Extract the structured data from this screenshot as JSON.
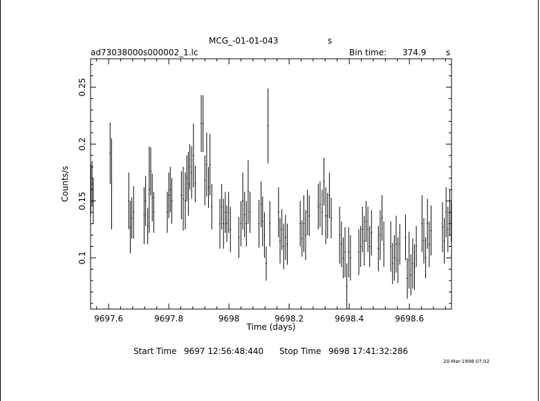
{
  "header": {
    "object_name": "MCG_-01-01-043",
    "instrument_suffix": "s",
    "file_name": "ad73038000s000002_1.lc",
    "bin_time_label": "Bin time:",
    "bin_time_value": "374.9",
    "bin_time_unit": "s"
  },
  "footer": {
    "start_label": "Start Time",
    "start_value": "9697  12:56:48:440",
    "stop_label": "Stop Time",
    "stop_value": "9698  17:41:32:286",
    "date_stamp": "20-Mar-1998 07:02"
  },
  "chart_data": {
    "type": "scatter",
    "xlabel": "Time (days)",
    "ylabel": "Counts/s",
    "xlim": [
      9697.54,
      9698.74
    ],
    "ylim": [
      0.055,
      0.275
    ],
    "xticks": [
      9697.6,
      9697.8,
      9698,
      9698.2,
      9698.4,
      9698.6
    ],
    "xtick_labels": [
      "9697.6",
      "9697.8",
      "9698",
      "9698.2",
      "9698.4",
      "9698.6"
    ],
    "yticks": [
      0.1,
      0.15,
      0.2,
      0.25
    ],
    "ytick_labels": [
      "0.1",
      "0.15",
      "0.2",
      "0.25"
    ],
    "grid": false,
    "points": [
      {
        "x": 9697.541,
        "y": 0.16,
        "err": 0.022
      },
      {
        "x": 9697.545,
        "y": 0.165,
        "err": 0.02
      },
      {
        "x": 9697.549,
        "y": 0.15,
        "err": 0.02
      },
      {
        "x": 9697.605,
        "y": 0.192,
        "err": 0.027
      },
      {
        "x": 9697.61,
        "y": 0.165,
        "err": 0.04
      },
      {
        "x": 9697.667,
        "y": 0.15,
        "err": 0.025
      },
      {
        "x": 9697.672,
        "y": 0.127,
        "err": 0.023
      },
      {
        "x": 9697.677,
        "y": 0.135,
        "err": 0.018
      },
      {
        "x": 9697.683,
        "y": 0.14,
        "err": 0.023
      },
      {
        "x": 9697.718,
        "y": 0.137,
        "err": 0.025
      },
      {
        "x": 9697.723,
        "y": 0.15,
        "err": 0.022
      },
      {
        "x": 9697.73,
        "y": 0.128,
        "err": 0.016
      },
      {
        "x": 9697.735,
        "y": 0.16,
        "err": 0.038
      },
      {
        "x": 9697.74,
        "y": 0.176,
        "err": 0.021
      },
      {
        "x": 9697.745,
        "y": 0.153,
        "err": 0.021
      },
      {
        "x": 9697.75,
        "y": 0.14,
        "err": 0.018
      },
      {
        "x": 9697.795,
        "y": 0.14,
        "err": 0.018
      },
      {
        "x": 9697.8,
        "y": 0.155,
        "err": 0.02
      },
      {
        "x": 9697.805,
        "y": 0.16,
        "err": 0.02
      },
      {
        "x": 9697.81,
        "y": 0.15,
        "err": 0.02
      },
      {
        "x": 9697.842,
        "y": 0.155,
        "err": 0.021
      },
      {
        "x": 9697.848,
        "y": 0.152,
        "err": 0.028
      },
      {
        "x": 9697.855,
        "y": 0.15,
        "err": 0.025
      },
      {
        "x": 9697.86,
        "y": 0.17,
        "err": 0.02
      },
      {
        "x": 9697.865,
        "y": 0.165,
        "err": 0.028
      },
      {
        "x": 9697.87,
        "y": 0.18,
        "err": 0.02
      },
      {
        "x": 9697.876,
        "y": 0.175,
        "err": 0.023
      },
      {
        "x": 9697.882,
        "y": 0.19,
        "err": 0.028
      },
      {
        "x": 9697.888,
        "y": 0.165,
        "err": 0.016
      },
      {
        "x": 9697.908,
        "y": 0.218,
        "err": 0.025
      },
      {
        "x": 9697.914,
        "y": 0.218,
        "err": 0.025
      },
      {
        "x": 9697.92,
        "y": 0.168,
        "err": 0.022
      },
      {
        "x": 9697.926,
        "y": 0.182,
        "err": 0.028
      },
      {
        "x": 9697.932,
        "y": 0.162,
        "err": 0.018
      },
      {
        "x": 9697.937,
        "y": 0.182,
        "err": 0.027
      },
      {
        "x": 9697.943,
        "y": 0.145,
        "err": 0.02
      },
      {
        "x": 9697.97,
        "y": 0.13,
        "err": 0.022
      },
      {
        "x": 9697.976,
        "y": 0.145,
        "err": 0.02
      },
      {
        "x": 9697.982,
        "y": 0.13,
        "err": 0.022
      },
      {
        "x": 9697.988,
        "y": 0.14,
        "err": 0.018
      },
      {
        "x": 9697.993,
        "y": 0.13,
        "err": 0.016
      },
      {
        "x": 9697.999,
        "y": 0.14,
        "err": 0.018
      },
      {
        "x": 9698.005,
        "y": 0.125,
        "err": 0.02
      },
      {
        "x": 9698.033,
        "y": 0.118,
        "err": 0.018
      },
      {
        "x": 9698.04,
        "y": 0.13,
        "err": 0.02
      },
      {
        "x": 9698.046,
        "y": 0.15,
        "err": 0.025
      },
      {
        "x": 9698.052,
        "y": 0.138,
        "err": 0.02
      },
      {
        "x": 9698.058,
        "y": 0.13,
        "err": 0.02
      },
      {
        "x": 9698.064,
        "y": 0.158,
        "err": 0.028
      },
      {
        "x": 9698.07,
        "y": 0.14,
        "err": 0.018
      },
      {
        "x": 9698.1,
        "y": 0.13,
        "err": 0.021
      },
      {
        "x": 9698.107,
        "y": 0.147,
        "err": 0.02
      },
      {
        "x": 9698.112,
        "y": 0.132,
        "err": 0.022
      },
      {
        "x": 9698.118,
        "y": 0.12,
        "err": 0.02
      },
      {
        "x": 9698.124,
        "y": 0.095,
        "err": 0.015
      },
      {
        "x": 9698.13,
        "y": 0.216,
        "err": 0.033
      },
      {
        "x": 9698.136,
        "y": 0.13,
        "err": 0.02
      },
      {
        "x": 9698.165,
        "y": 0.14,
        "err": 0.022
      },
      {
        "x": 9698.17,
        "y": 0.115,
        "err": 0.02
      },
      {
        "x": 9698.176,
        "y": 0.125,
        "err": 0.018
      },
      {
        "x": 9698.182,
        "y": 0.11,
        "err": 0.02
      },
      {
        "x": 9698.188,
        "y": 0.118,
        "err": 0.02
      },
      {
        "x": 9698.194,
        "y": 0.112,
        "err": 0.018
      },
      {
        "x": 9698.237,
        "y": 0.13,
        "err": 0.02
      },
      {
        "x": 9698.243,
        "y": 0.117,
        "err": 0.016
      },
      {
        "x": 9698.249,
        "y": 0.13,
        "err": 0.025
      },
      {
        "x": 9698.255,
        "y": 0.12,
        "err": 0.022
      },
      {
        "x": 9698.261,
        "y": 0.14,
        "err": 0.02
      },
      {
        "x": 9698.267,
        "y": 0.137,
        "err": 0.018
      },
      {
        "x": 9698.297,
        "y": 0.145,
        "err": 0.02
      },
      {
        "x": 9698.303,
        "y": 0.147,
        "err": 0.02
      },
      {
        "x": 9698.31,
        "y": 0.14,
        "err": 0.02
      },
      {
        "x": 9698.316,
        "y": 0.167,
        "err": 0.021
      },
      {
        "x": 9698.322,
        "y": 0.137,
        "err": 0.025
      },
      {
        "x": 9698.328,
        "y": 0.137,
        "err": 0.02
      },
      {
        "x": 9698.334,
        "y": 0.155,
        "err": 0.02
      },
      {
        "x": 9698.34,
        "y": 0.135,
        "err": 0.018
      },
      {
        "x": 9698.368,
        "y": 0.12,
        "err": 0.025
      },
      {
        "x": 9698.374,
        "y": 0.112,
        "err": 0.02
      },
      {
        "x": 9698.38,
        "y": 0.1,
        "err": 0.018
      },
      {
        "x": 9698.386,
        "y": 0.105,
        "err": 0.022
      },
      {
        "x": 9698.392,
        "y": 0.075,
        "err": 0.02
      },
      {
        "x": 9698.398,
        "y": 0.105,
        "err": 0.022
      },
      {
        "x": 9698.404,
        "y": 0.1,
        "err": 0.02
      },
      {
        "x": 9698.432,
        "y": 0.105,
        "err": 0.02
      },
      {
        "x": 9698.438,
        "y": 0.11,
        "err": 0.018
      },
      {
        "x": 9698.444,
        "y": 0.125,
        "err": 0.02
      },
      {
        "x": 9698.45,
        "y": 0.115,
        "err": 0.022
      },
      {
        "x": 9698.456,
        "y": 0.132,
        "err": 0.018
      },
      {
        "x": 9698.462,
        "y": 0.125,
        "err": 0.02
      },
      {
        "x": 9698.468,
        "y": 0.11,
        "err": 0.018
      },
      {
        "x": 9698.474,
        "y": 0.122,
        "err": 0.02
      },
      {
        "x": 9698.497,
        "y": 0.108,
        "err": 0.02
      },
      {
        "x": 9698.503,
        "y": 0.12,
        "err": 0.022
      },
      {
        "x": 9698.509,
        "y": 0.135,
        "err": 0.02
      },
      {
        "x": 9698.515,
        "y": 0.112,
        "err": 0.02
      },
      {
        "x": 9698.538,
        "y": 0.11,
        "err": 0.022
      },
      {
        "x": 9698.544,
        "y": 0.095,
        "err": 0.018
      },
      {
        "x": 9698.55,
        "y": 0.1,
        "err": 0.02
      },
      {
        "x": 9698.556,
        "y": 0.112,
        "err": 0.025
      },
      {
        "x": 9698.562,
        "y": 0.098,
        "err": 0.02
      },
      {
        "x": 9698.568,
        "y": 0.112,
        "err": 0.018
      },
      {
        "x": 9698.587,
        "y": 0.118,
        "err": 0.02
      },
      {
        "x": 9698.593,
        "y": 0.082,
        "err": 0.018
      },
      {
        "x": 9698.599,
        "y": 0.098,
        "err": 0.025
      },
      {
        "x": 9698.605,
        "y": 0.085,
        "err": 0.018
      },
      {
        "x": 9698.611,
        "y": 0.095,
        "err": 0.022
      },
      {
        "x": 9698.617,
        "y": 0.092,
        "err": 0.02
      },
      {
        "x": 9698.623,
        "y": 0.11,
        "err": 0.018
      },
      {
        "x": 9698.642,
        "y": 0.13,
        "err": 0.025
      },
      {
        "x": 9698.648,
        "y": 0.115,
        "err": 0.02
      },
      {
        "x": 9698.654,
        "y": 0.1,
        "err": 0.018
      },
      {
        "x": 9698.66,
        "y": 0.13,
        "err": 0.022
      },
      {
        "x": 9698.666,
        "y": 0.112,
        "err": 0.02
      },
      {
        "x": 9698.672,
        "y": 0.124,
        "err": 0.022
      },
      {
        "x": 9698.71,
        "y": 0.127,
        "err": 0.022
      },
      {
        "x": 9698.716,
        "y": 0.115,
        "err": 0.02
      },
      {
        "x": 9698.722,
        "y": 0.14,
        "err": 0.022
      },
      {
        "x": 9698.728,
        "y": 0.125,
        "err": 0.02
      },
      {
        "x": 9698.734,
        "y": 0.14,
        "err": 0.02
      },
      {
        "x": 9698.739,
        "y": 0.132,
        "err": 0.018
      }
    ]
  }
}
